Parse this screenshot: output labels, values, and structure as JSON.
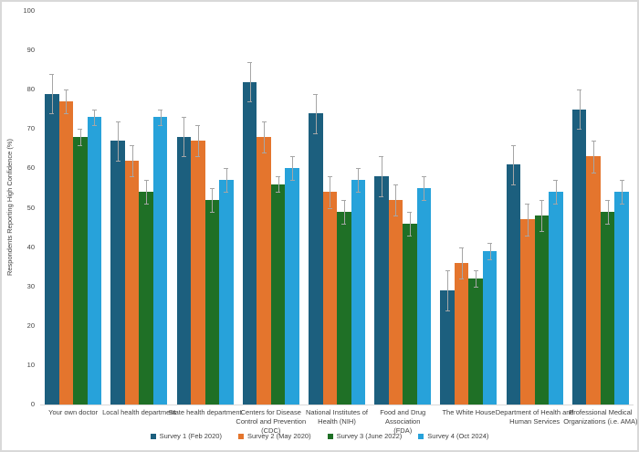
{
  "chart_data": {
    "type": "bar",
    "title": "",
    "ylabel": "Respondents Reporting High Confidence (%)",
    "xlabel": "",
    "ylim": [
      0,
      100
    ],
    "yticks": [
      0,
      10,
      20,
      30,
      40,
      50,
      60,
      70,
      80,
      90,
      100
    ],
    "grid": false,
    "legend_position": "bottom",
    "error_bars": true,
    "categories": [
      "Your own doctor",
      "Local health department",
      "State health department",
      "Centers for Disease\nControl and Prevention\n(CDC)",
      "National Institutes of\nHealth (NIH)",
      "Food and Drug Association\n(FDA)",
      "The White House",
      "Department of Health and\nHuman Services",
      "Professional Medical\nOrganizations (i.e. AMA)"
    ],
    "series": [
      {
        "name": "Survey 1 (Feb 2020)",
        "color": "#1C5F7E",
        "values": [
          79,
          67,
          68,
          82,
          74,
          58,
          29,
          61,
          75
        ],
        "errors": [
          5,
          5,
          5,
          5,
          5,
          5,
          5,
          5,
          5
        ]
      },
      {
        "name": "Survey 2 (May 2020)",
        "color": "#E4752D",
        "values": [
          77,
          62,
          67,
          68,
          54,
          52,
          36,
          47,
          63
        ],
        "errors": [
          3,
          4,
          4,
          4,
          4,
          4,
          4,
          4,
          4
        ]
      },
      {
        "name": "Survey 3 (June 2022)",
        "color": "#1F7026",
        "values": [
          68,
          54,
          52,
          56,
          49,
          46,
          32,
          48,
          49
        ],
        "errors": [
          2,
          3,
          3,
          2,
          3,
          3,
          2,
          4,
          3
        ]
      },
      {
        "name": "Survey 4 (Oct 2024)",
        "color": "#27A2DA",
        "values": [
          73,
          73,
          57,
          60,
          57,
          55,
          39,
          54,
          54
        ],
        "errors": [
          2,
          2,
          3,
          3,
          3,
          3,
          2,
          3,
          3
        ]
      }
    ],
    "colors": {
      "axis_line": "#D9D9D9",
      "error_bar": "#A6A6A6",
      "text": "#3F3F3F",
      "frame_border": "#D9D9D9"
    }
  }
}
